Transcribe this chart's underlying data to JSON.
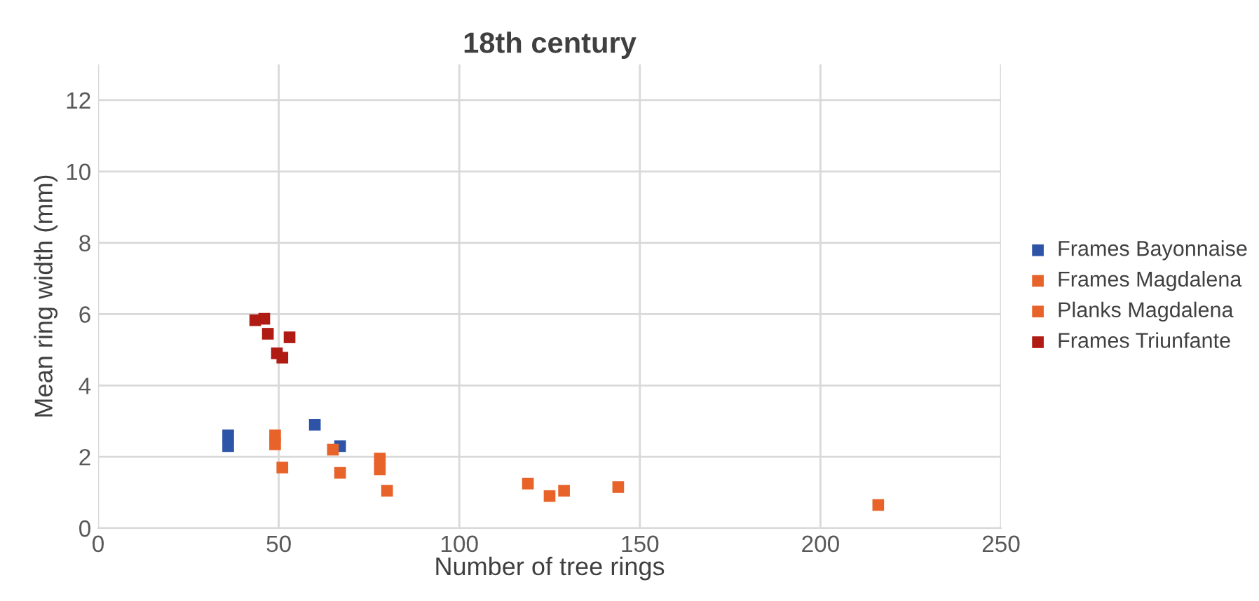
{
  "chart_data": {
    "type": "scatter",
    "title": "18th century",
    "xlabel": "Number of tree rings",
    "ylabel": "Mean ring width (mm)",
    "xlim": [
      0,
      250
    ],
    "xticks": [
      0,
      50,
      100,
      150,
      200,
      250
    ],
    "ylim": [
      0,
      13
    ],
    "yticks": [
      0,
      2,
      4,
      6,
      8,
      10,
      12
    ],
    "grid": true,
    "legend": "right",
    "marker": "square",
    "series": [
      {
        "name": "Frames Bayonnaise",
        "color": "#2e54a8",
        "x": [
          36,
          36,
          60,
          67
        ],
        "values": [
          2.3,
          2.6,
          2.9,
          2.3
        ]
      },
      {
        "name": "Frames Magdalena",
        "color": "#e8632a",
        "x": [
          49,
          49,
          51,
          65,
          67,
          78,
          78,
          119,
          125,
          129,
          144,
          216
        ],
        "values": [
          2.6,
          2.35,
          1.7,
          2.2,
          1.55,
          1.95,
          1.65,
          1.25,
          0.9,
          1.05,
          1.15,
          0.65
        ]
      },
      {
        "name": "Planks Magdalena",
        "color": "#e8632a",
        "x": [
          80
        ],
        "values": [
          1.05
        ]
      },
      {
        "name": "Frames Triunfante",
        "color": "#b01c14",
        "x": [
          43.5,
          46,
          47,
          53,
          49.5,
          51
        ],
        "values": [
          5.83,
          5.87,
          5.45,
          5.35,
          4.9,
          4.78
        ]
      }
    ]
  }
}
